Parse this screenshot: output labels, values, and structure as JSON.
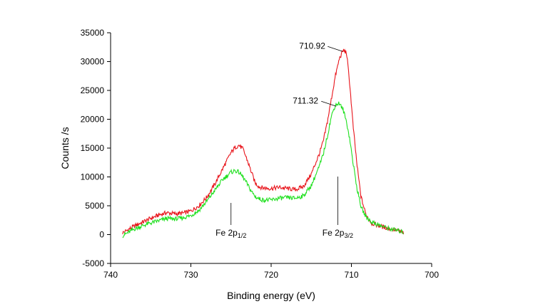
{
  "chart_data": {
    "type": "line",
    "title": "",
    "xlabel": "Binding energy (eV)",
    "ylabel": "Counts /s",
    "xlim": [
      740,
      700
    ],
    "ylim": [
      -5000,
      35000
    ],
    "x_ticks": [
      740,
      730,
      720,
      710,
      700
    ],
    "y_ticks": [
      -5000,
      0,
      5000,
      10000,
      15000,
      20000,
      25000,
      30000,
      35000
    ],
    "x_tick_labels": [
      "740",
      "730",
      "720",
      "710",
      "700"
    ],
    "y_tick_labels": [
      "-5000",
      "0",
      "5000",
      "10000",
      "15000",
      "20000",
      "25000",
      "30000",
      "35000"
    ],
    "x_reversed": true,
    "grid": false,
    "legend": "none",
    "series": [
      {
        "color": "#e8141b",
        "x": [
          738.5,
          737,
          735.5,
          734,
          733,
          732,
          731,
          730,
          729,
          728,
          727,
          726,
          725,
          724.5,
          724,
          723.5,
          723,
          722.5,
          722,
          721.5,
          721,
          720,
          719,
          718,
          717,
          716,
          715,
          714,
          713.5,
          713,
          712.5,
          712,
          711.5,
          711,
          710.6,
          710.2,
          709.8,
          709.3,
          708.8,
          708.2,
          707.5,
          706.5,
          705.5,
          704.5,
          703.5
        ],
        "y": [
          300,
          1500,
          2500,
          3400,
          3800,
          3600,
          3700,
          4100,
          5000,
          6500,
          8800,
          11500,
          14200,
          15100,
          15500,
          14800,
          13000,
          11000,
          9000,
          8300,
          8100,
          8000,
          8200,
          8000,
          7800,
          8300,
          10500,
          14000,
          16200,
          19500,
          23500,
          27500,
          30500,
          32000,
          31500,
          26000,
          19000,
          12000,
          6500,
          3500,
          2000,
          1500,
          1100,
          800,
          300
        ]
      },
      {
        "color": "#1fe01f",
        "x": [
          738.5,
          737,
          735.5,
          734,
          733,
          732,
          731,
          730,
          729,
          728,
          727,
          726,
          725,
          724.5,
          724,
          723.5,
          723,
          722.5,
          722,
          721.5,
          721,
          720,
          719,
          718,
          717,
          716,
          715,
          714,
          713.5,
          713,
          712.5,
          712,
          711.5,
          711,
          710.6,
          710.2,
          709.8,
          709.3,
          708.8,
          708.2,
          707.5,
          706.5,
          705.5,
          704.5,
          703.5
        ],
        "y": [
          -200,
          1000,
          1800,
          2400,
          2800,
          2700,
          2900,
          3300,
          4200,
          5800,
          7700,
          9600,
          10800,
          11100,
          10800,
          10000,
          8800,
          7600,
          6600,
          6200,
          6000,
          6000,
          6300,
          6400,
          6300,
          6700,
          8500,
          11800,
          14000,
          17000,
          20500,
          22500,
          22800,
          21500,
          19500,
          16500,
          12500,
          8000,
          4800,
          3100,
          2200,
          1600,
          1100,
          800,
          400
        ]
      }
    ],
    "peak_labels": [
      {
        "text": "710.92",
        "x": 711.0,
        "y": 32000
      },
      {
        "text": "711.32",
        "x": 711.8,
        "y": 22500
      }
    ],
    "annotations": [
      {
        "main": "Fe 2p",
        "sub": "1/2",
        "x": 725.0
      },
      {
        "main": "Fe 2p",
        "sub": "3/2",
        "x": 711.7
      }
    ]
  }
}
